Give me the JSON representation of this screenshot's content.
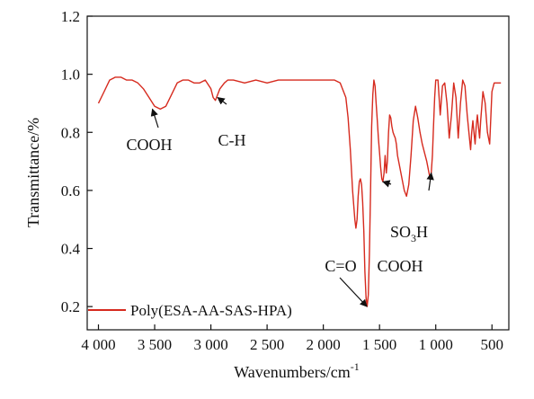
{
  "chart_data": {
    "type": "line",
    "xlabel": "Wavenumbers/cm",
    "xlabel_sup": "-1",
    "ylabel": "Transmittance/%",
    "xlim": [
      4100,
      350
    ],
    "ylim": [
      0.12,
      1.2
    ],
    "x_ticks": [
      4000,
      3500,
      3000,
      2500,
      2000,
      1500,
      1000,
      500
    ],
    "x_tick_labels": [
      "4 000",
      "3 500",
      "3 000",
      "2 500",
      "2 000",
      "1 500",
      "1 000",
      "500"
    ],
    "y_ticks": [
      0.2,
      0.4,
      0.6,
      0.8,
      1.0,
      1.2
    ],
    "y_tick_labels": [
      "0.2",
      "0.4",
      "0.6",
      "0.8",
      "1.0",
      "1.2"
    ],
    "grid": false,
    "legend_position": "bottom-left",
    "series": [
      {
        "name": "Poly(ESA-AA-SAS-HPA)",
        "color": "#d62a1e",
        "x": [
          4000,
          3950,
          3900,
          3850,
          3800,
          3750,
          3700,
          3650,
          3600,
          3550,
          3500,
          3450,
          3400,
          3350,
          3300,
          3250,
          3200,
          3150,
          3100,
          3050,
          3000,
          2980,
          2960,
          2940,
          2920,
          2900,
          2880,
          2850,
          2800,
          2700,
          2600,
          2500,
          2400,
          2300,
          2200,
          2100,
          2000,
          1900,
          1850,
          1800,
          1780,
          1760,
          1740,
          1720,
          1710,
          1700,
          1690,
          1680,
          1670,
          1660,
          1650,
          1640,
          1630,
          1620,
          1610,
          1600,
          1590,
          1580,
          1570,
          1560,
          1550,
          1540,
          1530,
          1520,
          1510,
          1500,
          1490,
          1480,
          1470,
          1460,
          1450,
          1440,
          1430,
          1420,
          1410,
          1400,
          1390,
          1380,
          1370,
          1360,
          1350,
          1340,
          1320,
          1300,
          1280,
          1260,
          1240,
          1220,
          1200,
          1180,
          1160,
          1140,
          1120,
          1100,
          1080,
          1060,
          1050,
          1040,
          1030,
          1020,
          1010,
          1000,
          980,
          960,
          940,
          920,
          900,
          880,
          860,
          840,
          820,
          800,
          780,
          760,
          740,
          720,
          700,
          690,
          680,
          670,
          660,
          650,
          640,
          630,
          620,
          610,
          600,
          580,
          560,
          540,
          520,
          500,
          480,
          460,
          440,
          420
        ],
        "y": [
          0.9,
          0.94,
          0.98,
          0.99,
          0.99,
          0.98,
          0.98,
          0.97,
          0.95,
          0.92,
          0.89,
          0.88,
          0.89,
          0.93,
          0.97,
          0.98,
          0.98,
          0.97,
          0.97,
          0.98,
          0.95,
          0.92,
          0.91,
          0.93,
          0.95,
          0.96,
          0.97,
          0.98,
          0.98,
          0.97,
          0.98,
          0.97,
          0.98,
          0.98,
          0.98,
          0.98,
          0.98,
          0.98,
          0.97,
          0.92,
          0.85,
          0.74,
          0.6,
          0.5,
          0.47,
          0.5,
          0.58,
          0.63,
          0.64,
          0.62,
          0.56,
          0.46,
          0.32,
          0.23,
          0.2,
          0.24,
          0.38,
          0.6,
          0.82,
          0.93,
          0.98,
          0.96,
          0.9,
          0.84,
          0.78,
          0.73,
          0.68,
          0.64,
          0.63,
          0.66,
          0.72,
          0.66,
          0.7,
          0.8,
          0.86,
          0.85,
          0.82,
          0.8,
          0.79,
          0.78,
          0.76,
          0.72,
          0.68,
          0.64,
          0.6,
          0.58,
          0.62,
          0.72,
          0.84,
          0.89,
          0.85,
          0.8,
          0.76,
          0.73,
          0.7,
          0.66,
          0.64,
          0.66,
          0.72,
          0.82,
          0.92,
          0.98,
          0.98,
          0.86,
          0.96,
          0.97,
          0.9,
          0.78,
          0.86,
          0.97,
          0.92,
          0.78,
          0.9,
          0.98,
          0.96,
          0.86,
          0.78,
          0.74,
          0.8,
          0.84,
          0.8,
          0.76,
          0.82,
          0.86,
          0.82,
          0.78,
          0.84,
          0.94,
          0.9,
          0.8,
          0.76,
          0.94,
          0.97,
          0.97,
          0.97,
          0.97
        ]
      }
    ],
    "annotations": [
      {
        "text": "COOH",
        "arrow_to_x": 3520,
        "arrow_to_y": 0.88
      },
      {
        "text": "C-H",
        "arrow_to_x": 2940,
        "arrow_to_y": 0.92
      },
      {
        "text": "C=O",
        "arrow_to_x": 1612,
        "arrow_to_y": 0.2
      },
      {
        "text": "COOH",
        "arrow_to_x": 1470,
        "arrow_to_y": 0.63
      },
      {
        "text": "SO3H",
        "text_main": "SO",
        "text_sub": "3",
        "text_tail": "H",
        "arrow_to_x": 1040,
        "arrow_to_y": 0.66
      }
    ]
  }
}
